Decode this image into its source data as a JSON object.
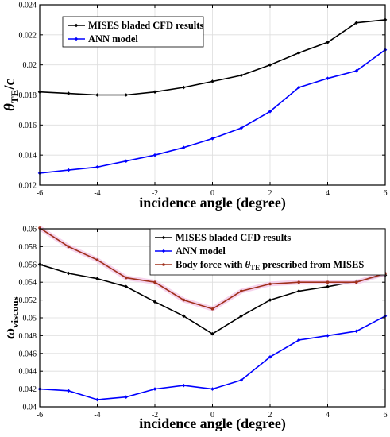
{
  "chart_data": [
    {
      "type": "line",
      "xlabel": "incidence angle (degree)",
      "ylabel": {
        "symbol": "θ",
        "subscript": "TE",
        "suffix": "/c"
      },
      "xlim": [
        -6,
        6
      ],
      "ylim": [
        0.012,
        0.024
      ],
      "xticks": [
        -6,
        -4,
        -2,
        0,
        2,
        4,
        6
      ],
      "yticks": [
        0.012,
        0.014,
        0.016,
        0.018,
        0.02,
        0.022,
        0.024
      ],
      "ytick_labels": [
        "0.012",
        "0.014",
        "0.016",
        "0.018",
        "0.02",
        "0.022",
        "0.024"
      ],
      "grid": true,
      "legend_position": "top-left",
      "x": [
        -6,
        -5,
        -4,
        -3,
        -2,
        -1,
        0,
        1,
        2,
        3,
        4,
        5,
        6
      ],
      "series": [
        {
          "name": "MISES bladed CFD results",
          "color": "#000000",
          "values": [
            0.0182,
            0.0181,
            0.018,
            0.018,
            0.0182,
            0.0185,
            0.0189,
            0.0193,
            0.02,
            0.0208,
            0.0215,
            0.0228,
            0.023
          ]
        },
        {
          "name": "ANN model",
          "color": "#0000ff",
          "values": [
            0.0128,
            0.013,
            0.0132,
            0.0136,
            0.014,
            0.0145,
            0.0151,
            0.0158,
            0.0169,
            0.0185,
            0.0191,
            0.0196,
            0.021
          ]
        }
      ]
    },
    {
      "type": "line",
      "xlabel": "incidence angle (degree)",
      "ylabel": {
        "symbol": "ω",
        "subscript": "viscous"
      },
      "xlim": [
        -6,
        6
      ],
      "ylim": [
        0.04,
        0.06
      ],
      "xticks": [
        -6,
        -4,
        -2,
        0,
        2,
        4,
        6
      ],
      "yticks": [
        0.04,
        0.042,
        0.044,
        0.046,
        0.048,
        0.05,
        0.052,
        0.054,
        0.056,
        0.058,
        0.06
      ],
      "ytick_labels": [
        "0.04",
        "0.042",
        "0.044",
        "0.046",
        "0.048",
        "0.05",
        "0.052",
        "0.054",
        "0.056",
        "0.058",
        "0.06"
      ],
      "grid": true,
      "legend_position": "top-right",
      "x": [
        -6,
        -5,
        -4,
        -3,
        -2,
        -1,
        0,
        1,
        2,
        3,
        4,
        5,
        6
      ],
      "series": [
        {
          "name": "MISES bladed CFD results",
          "color": "#000000",
          "values": [
            0.056,
            0.055,
            0.0544,
            0.0535,
            0.0518,
            0.0502,
            0.0482,
            0.0502,
            0.052,
            0.053,
            0.0535,
            0.0541,
            0.0548
          ]
        },
        {
          "name": "ANN model",
          "color": "#0000ff",
          "values": [
            0.042,
            0.0418,
            0.0408,
            0.0411,
            0.042,
            0.0424,
            0.042,
            0.043,
            0.0456,
            0.0475,
            0.048,
            0.0485,
            0.0502
          ]
        },
        {
          "name": "Body force with θTE prescribed from MISES",
          "name_parts": {
            "pre": "Body force with ",
            "symbol": "θ",
            "sub": "TE",
            "post": " prescribed from MISES"
          },
          "color": "#a0301c",
          "values": [
            0.0601,
            0.058,
            0.0565,
            0.0545,
            0.054,
            0.052,
            0.051,
            0.053,
            0.0538,
            0.054,
            0.054,
            0.054,
            0.055
          ]
        }
      ]
    }
  ]
}
